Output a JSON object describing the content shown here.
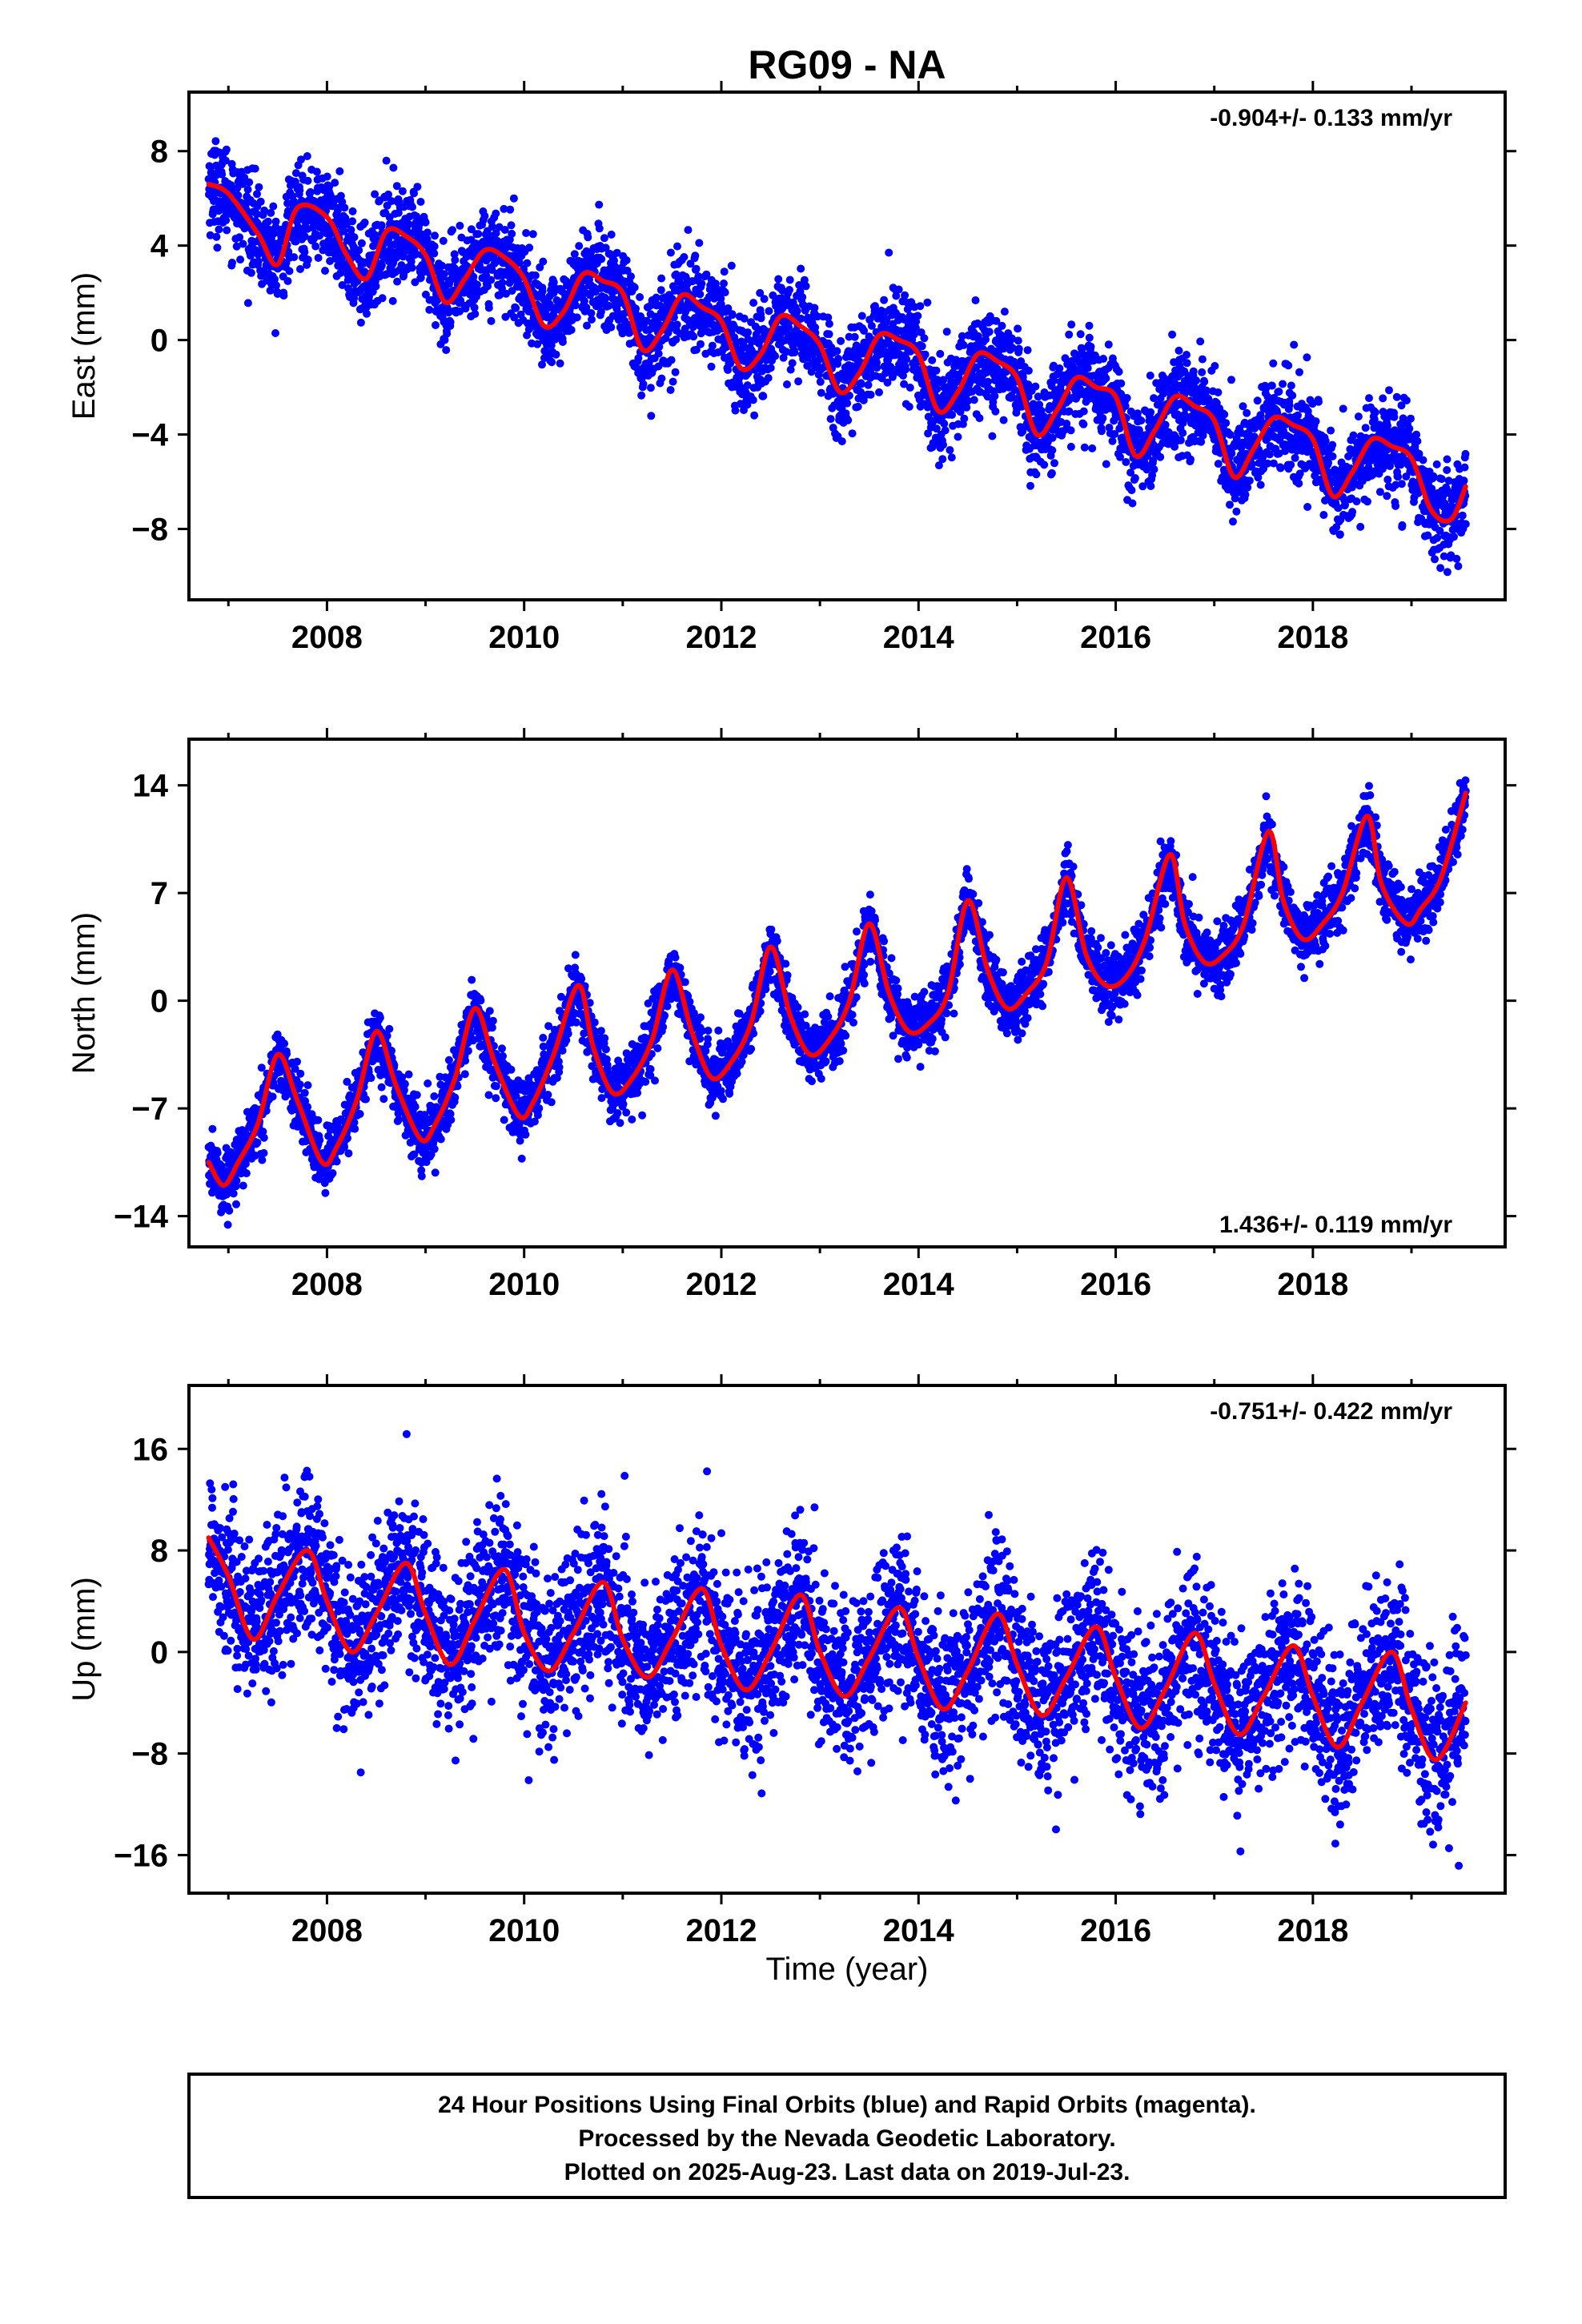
{
  "title": "RG09 - NA",
  "xlabel": "Time (year)",
  "caption": {
    "lines": [
      "24 Hour Positions Using Final Orbits (blue) and Rapid Orbits (magenta).",
      "Processed by the Nevada Geodetic Laboratory.",
      "Plotted on 2025-Aug-23. Last data on 2019-Jul-23."
    ]
  },
  "colors": {
    "final_orbits": "#0000ff",
    "model_fit": "#ff0000",
    "rapid_orbits": "#ff00ff"
  },
  "chart_data": [
    {
      "type": "scatter",
      "component": "east",
      "ylabel": "East (mm)",
      "rate_label": "-0.904+/- 0.133 mm/yr",
      "rate_position": "top-right",
      "xlim": [
        2006.6,
        2019.95
      ],
      "ylim": [
        -11,
        10.5
      ],
      "xticks": [
        2008,
        2010,
        2012,
        2014,
        2016,
        2018
      ],
      "yticks": [
        -8,
        -4,
        0,
        4,
        8
      ],
      "ytick_labels": [
        "−8",
        "−4",
        "0",
        "4",
        "8"
      ],
      "x_start": 2006.8,
      "x_end": 2019.55,
      "scatter_sd": 1.0,
      "series": [
        {
          "name": "daily positions",
          "style": "points",
          "color": "#0000ff",
          "x": [
            2006.8,
            2007.0,
            2007.3,
            2007.5,
            2007.7,
            2008.0,
            2008.2,
            2008.4,
            2008.6,
            2008.8,
            2009.0,
            2009.2,
            2009.4,
            2009.6,
            2009.8,
            2010.0,
            2010.2,
            2010.4,
            2010.6,
            2010.8,
            2011.0,
            2011.2,
            2011.4,
            2011.6,
            2011.8,
            2012.0,
            2012.2,
            2012.4,
            2012.6,
            2012.8,
            2013.0,
            2013.2,
            2013.4,
            2013.6,
            2013.8,
            2014.0,
            2014.2,
            2014.4,
            2014.6,
            2014.8,
            2015.0,
            2015.2,
            2015.4,
            2015.6,
            2015.8,
            2016.0,
            2016.2,
            2016.4,
            2016.6,
            2016.8,
            2017.0,
            2017.2,
            2017.4,
            2017.6,
            2017.8,
            2018.0,
            2018.2,
            2018.4,
            2018.6,
            2018.8,
            2019.0,
            2019.2,
            2019.4,
            2019.55
          ],
          "y": [
            6.6,
            6.2,
            4.5,
            3.2,
            5.6,
            5.2,
            3.6,
            2.6,
            4.6,
            4.4,
            3.6,
            1.6,
            2.6,
            3.8,
            3.5,
            2.6,
            0.6,
            1.2,
            2.8,
            2.5,
            2.0,
            -0.4,
            0.4,
            1.9,
            1.4,
            0.8,
            -1.2,
            -0.6,
            1.0,
            0.6,
            -0.2,
            -2.2,
            -1.4,
            0.2,
            0.0,
            -0.6,
            -3.0,
            -2.2,
            -0.6,
            -0.9,
            -1.6,
            -4.0,
            -3.0,
            -1.6,
            -2.0,
            -2.4,
            -4.9,
            -3.8,
            -2.4,
            -2.8,
            -3.4,
            -5.8,
            -4.6,
            -3.3,
            -3.6,
            -4.2,
            -6.6,
            -5.6,
            -4.2,
            -4.5,
            -5.0,
            -7.2,
            -7.6,
            -6.2
          ]
        },
        {
          "name": "model fit",
          "style": "line",
          "color": "#ff0000",
          "x": [
            2006.8,
            2007.0,
            2007.3,
            2007.5,
            2007.7,
            2008.0,
            2008.2,
            2008.4,
            2008.6,
            2008.8,
            2009.0,
            2009.2,
            2009.4,
            2009.6,
            2009.8,
            2010.0,
            2010.2,
            2010.4,
            2010.6,
            2010.8,
            2011.0,
            2011.2,
            2011.4,
            2011.6,
            2011.8,
            2012.0,
            2012.2,
            2012.4,
            2012.6,
            2012.8,
            2013.0,
            2013.2,
            2013.4,
            2013.6,
            2013.8,
            2014.0,
            2014.2,
            2014.4,
            2014.6,
            2014.8,
            2015.0,
            2015.2,
            2015.4,
            2015.6,
            2015.8,
            2016.0,
            2016.2,
            2016.4,
            2016.6,
            2016.8,
            2017.0,
            2017.2,
            2017.4,
            2017.6,
            2017.8,
            2018.0,
            2018.2,
            2018.4,
            2018.6,
            2018.8,
            2019.0,
            2019.2,
            2019.4,
            2019.55
          ],
          "y": [
            6.6,
            6.2,
            4.5,
            3.2,
            5.6,
            5.2,
            3.6,
            2.6,
            4.6,
            4.4,
            3.6,
            1.6,
            2.6,
            3.8,
            3.5,
            2.6,
            0.6,
            1.2,
            2.8,
            2.5,
            2.0,
            -0.4,
            0.4,
            1.9,
            1.4,
            0.8,
            -1.2,
            -0.6,
            1.0,
            0.6,
            -0.2,
            -2.2,
            -1.4,
            0.2,
            0.0,
            -0.6,
            -3.0,
            -2.2,
            -0.6,
            -0.9,
            -1.6,
            -4.0,
            -3.0,
            -1.6,
            -2.0,
            -2.4,
            -4.9,
            -3.8,
            -2.4,
            -2.8,
            -3.4,
            -5.8,
            -4.6,
            -3.3,
            -3.6,
            -4.2,
            -6.6,
            -5.6,
            -4.2,
            -4.5,
            -5.0,
            -7.2,
            -7.6,
            -6.2
          ]
        }
      ]
    },
    {
      "type": "scatter",
      "component": "north",
      "ylabel": "North (mm)",
      "rate_label": "1.436+/- 0.119 mm/yr",
      "rate_position": "bottom-right",
      "xlim": [
        2006.6,
        2019.95
      ],
      "ylim": [
        -16,
        17
      ],
      "xticks": [
        2008,
        2010,
        2012,
        2014,
        2016,
        2018
      ],
      "yticks": [
        -14,
        -7,
        0,
        7,
        14
      ],
      "ytick_labels": [
        "−14",
        "−7",
        "0",
        "7",
        "14"
      ],
      "x_start": 2006.8,
      "x_end": 2019.55,
      "scatter_sd": 1.0,
      "series": [
        {
          "name": "daily positions",
          "style": "points",
          "color": "#0000ff",
          "x": [
            2006.8,
            2006.95,
            2007.1,
            2007.3,
            2007.5,
            2007.7,
            2007.95,
            2008.1,
            2008.3,
            2008.5,
            2008.7,
            2008.95,
            2009.1,
            2009.3,
            2009.5,
            2009.7,
            2009.95,
            2010.1,
            2010.3,
            2010.55,
            2010.7,
            2010.9,
            2011.1,
            2011.3,
            2011.5,
            2011.7,
            2011.9,
            2012.1,
            2012.3,
            2012.5,
            2012.7,
            2012.9,
            2013.1,
            2013.3,
            2013.5,
            2013.7,
            2013.9,
            2014.1,
            2014.3,
            2014.5,
            2014.7,
            2014.9,
            2015.1,
            2015.3,
            2015.5,
            2015.7,
            2015.9,
            2016.1,
            2016.3,
            2016.55,
            2016.7,
            2016.9,
            2017.1,
            2017.3,
            2017.55,
            2017.7,
            2017.9,
            2018.1,
            2018.3,
            2018.55,
            2018.7,
            2018.95,
            2019.1,
            2019.3,
            2019.55
          ],
          "y": [
            -10.5,
            -12,
            -10.5,
            -8,
            -3.5,
            -6.5,
            -10.5,
            -9.5,
            -6.5,
            -2,
            -5.5,
            -9,
            -8,
            -5,
            -0.5,
            -4,
            -7.5,
            -6.5,
            -3.5,
            1,
            -3,
            -6,
            -5,
            -2.5,
            2,
            -2,
            -5,
            -4,
            -1.5,
            3.5,
            -1,
            -3.5,
            -2.5,
            0,
            5,
            0.5,
            -2,
            -1.5,
            0.5,
            6.5,
            2,
            -0.5,
            0.5,
            2.5,
            8,
            3,
            1,
            1.5,
            4,
            9.5,
            5,
            2.5,
            3,
            5,
            11,
            6.5,
            4,
            5,
            7,
            12,
            7.5,
            5,
            6,
            8,
            13.5
          ]
        },
        {
          "name": "model fit",
          "style": "line",
          "color": "#ff0000",
          "x": [
            2006.8,
            2006.95,
            2007.1,
            2007.3,
            2007.5,
            2007.7,
            2007.95,
            2008.1,
            2008.3,
            2008.5,
            2008.7,
            2008.95,
            2009.1,
            2009.3,
            2009.5,
            2009.7,
            2009.95,
            2010.1,
            2010.3,
            2010.55,
            2010.7,
            2010.9,
            2011.1,
            2011.3,
            2011.5,
            2011.7,
            2011.9,
            2012.1,
            2012.3,
            2012.5,
            2012.7,
            2012.9,
            2013.1,
            2013.3,
            2013.5,
            2013.7,
            2013.9,
            2014.1,
            2014.3,
            2014.5,
            2014.7,
            2014.9,
            2015.1,
            2015.3,
            2015.5,
            2015.7,
            2015.9,
            2016.1,
            2016.3,
            2016.55,
            2016.7,
            2016.9,
            2017.1,
            2017.3,
            2017.55,
            2017.7,
            2017.9,
            2018.1,
            2018.3,
            2018.55,
            2018.7,
            2018.95,
            2019.1,
            2019.3,
            2019.55
          ],
          "y": [
            -10.5,
            -12,
            -10.5,
            -8,
            -3.5,
            -6.5,
            -10.5,
            -9.5,
            -6.5,
            -2,
            -5.5,
            -9,
            -8,
            -5,
            -0.5,
            -4,
            -7.5,
            -6.5,
            -3.5,
            1,
            -3,
            -6,
            -5,
            -2.5,
            2,
            -2,
            -5,
            -4,
            -1.5,
            3.5,
            -1,
            -3.5,
            -2.5,
            0,
            5,
            0.5,
            -2,
            -1.5,
            0.5,
            6.5,
            2,
            -0.5,
            0.5,
            2.5,
            8,
            3,
            1,
            1.5,
            4,
            9.5,
            5,
            2.5,
            3,
            5,
            11,
            6.5,
            4,
            5,
            7,
            12,
            7.5,
            5,
            6,
            8,
            13.5
          ]
        }
      ]
    },
    {
      "type": "scatter",
      "component": "up",
      "ylabel": "Up (mm)",
      "rate_label": "-0.751+/- 0.422 mm/yr",
      "rate_position": "top-right",
      "xlim": [
        2006.6,
        2019.95
      ],
      "ylim": [
        -19,
        21
      ],
      "xticks": [
        2008,
        2010,
        2012,
        2014,
        2016,
        2018
      ],
      "yticks": [
        -16,
        -8,
        0,
        8,
        16
      ],
      "ytick_labels": [
        "−16",
        "−8",
        "0",
        "8",
        "16"
      ],
      "x_start": 2006.8,
      "x_end": 2019.55,
      "scatter_sd": 3.2,
      "series": [
        {
          "name": "daily positions",
          "style": "points",
          "color": "#0000ff",
          "x": [
            2006.8,
            2007.0,
            2007.25,
            2007.5,
            2007.8,
            2008.0,
            2008.25,
            2008.5,
            2008.8,
            2009.0,
            2009.25,
            2009.5,
            2009.8,
            2010.0,
            2010.25,
            2010.5,
            2010.8,
            2011.0,
            2011.25,
            2011.5,
            2011.8,
            2012.0,
            2012.25,
            2012.5,
            2012.8,
            2013.0,
            2013.25,
            2013.5,
            2013.8,
            2014.0,
            2014.25,
            2014.5,
            2014.8,
            2015.0,
            2015.25,
            2015.5,
            2015.8,
            2016.0,
            2016.25,
            2016.5,
            2016.8,
            2017.0,
            2017.25,
            2017.5,
            2017.8,
            2018.0,
            2018.25,
            2018.5,
            2018.8,
            2019.0,
            2019.25,
            2019.55
          ],
          "y": [
            9,
            6,
            1,
            4.5,
            8,
            4,
            0,
            3,
            7,
            3,
            -1,
            2.5,
            6.5,
            1.5,
            -1.5,
            1.5,
            5.5,
            1,
            -2,
            1,
            5,
            0.5,
            -3,
            0,
            4.5,
            0,
            -3.5,
            -0.5,
            3.5,
            -0.5,
            -4.5,
            -1.5,
            3,
            -1,
            -5,
            -2,
            2,
            -2,
            -6,
            -3,
            1.5,
            -2.5,
            -6.5,
            -3.5,
            0.5,
            -3.5,
            -7.5,
            -4,
            0,
            -4.5,
            -8.5,
            -4
          ]
        },
        {
          "name": "model fit",
          "style": "line",
          "color": "#ff0000",
          "x": [
            2006.8,
            2007.0,
            2007.25,
            2007.5,
            2007.8,
            2008.0,
            2008.25,
            2008.5,
            2008.8,
            2009.0,
            2009.25,
            2009.5,
            2009.8,
            2010.0,
            2010.25,
            2010.5,
            2010.8,
            2011.0,
            2011.25,
            2011.5,
            2011.8,
            2012.0,
            2012.25,
            2012.5,
            2012.8,
            2013.0,
            2013.25,
            2013.5,
            2013.8,
            2014.0,
            2014.25,
            2014.5,
            2014.8,
            2015.0,
            2015.25,
            2015.5,
            2015.8,
            2016.0,
            2016.25,
            2016.5,
            2016.8,
            2017.0,
            2017.25,
            2017.5,
            2017.8,
            2018.0,
            2018.25,
            2018.5,
            2018.8,
            2019.0,
            2019.25,
            2019.55
          ],
          "y": [
            9,
            6,
            1,
            4.5,
            8,
            4,
            0,
            3,
            7,
            3,
            -1,
            2.5,
            6.5,
            1.5,
            -1.5,
            1.5,
            5.5,
            1,
            -2,
            1,
            5,
            0.5,
            -3,
            0,
            4.5,
            0,
            -3.5,
            -0.5,
            3.5,
            -0.5,
            -4.5,
            -1.5,
            3,
            -1,
            -5,
            -2,
            2,
            -2,
            -6,
            -3,
            1.5,
            -2.5,
            -6.5,
            -3.5,
            0.5,
            -3.5,
            -7.5,
            -4,
            0,
            -4.5,
            -8.5,
            -4
          ]
        }
      ]
    }
  ]
}
